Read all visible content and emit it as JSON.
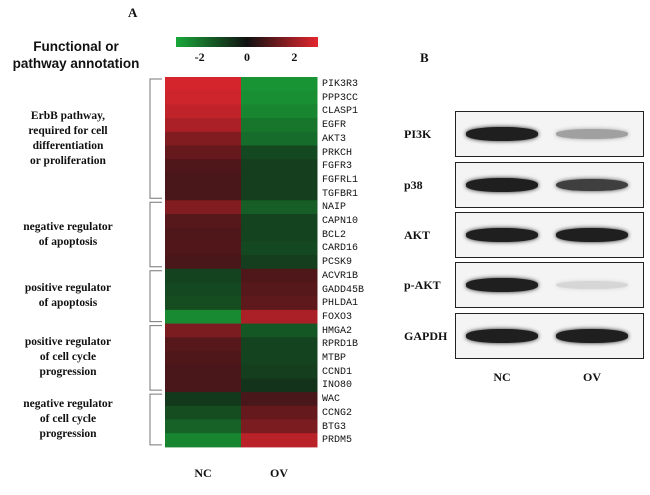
{
  "panels": {
    "a": "A",
    "b": "B"
  },
  "heading_lines": [
    "Functional or",
    "pathway annotation"
  ],
  "colors": {
    "low": "#1aa83a",
    "mid": "#111111",
    "high": "#e3262e"
  },
  "chart_data": [
    {
      "type": "heatmap",
      "columns": [
        "NC",
        "OV"
      ],
      "colorbar": {
        "min": -3,
        "max": 3,
        "ticks": [
          -2,
          0,
          2
        ]
      },
      "groups": [
        {
          "label_lines": [
            "ErbB pathway,",
            "required for cell",
            "differentiation",
            "or proliferation"
          ],
          "start": 0,
          "end": 8
        },
        {
          "label_lines": [
            "negative regulator",
            "of apoptosis"
          ],
          "start": 9,
          "end": 13
        },
        {
          "label_lines": [
            "positive regulator",
            "of apoptosis"
          ],
          "start": 14,
          "end": 17
        },
        {
          "label_lines": [
            "positive regulator",
            "of cell cycle",
            "progression"
          ],
          "start": 18,
          "end": 22
        },
        {
          "label_lines": [
            "negative regulator",
            "of cell cycle",
            "progression"
          ],
          "start": 23,
          "end": 26
        }
      ],
      "rows": [
        {
          "gene": "PIK3R3",
          "values": [
            2.8,
            -2.6
          ]
        },
        {
          "gene": "PPP3CC",
          "values": [
            2.7,
            -2.5
          ]
        },
        {
          "gene": "CLASP1",
          "values": [
            2.5,
            -2.3
          ]
        },
        {
          "gene": "EGFR",
          "values": [
            2.2,
            -2.0
          ]
        },
        {
          "gene": "AKT3",
          "values": [
            1.6,
            -1.8
          ]
        },
        {
          "gene": "PRKCH",
          "values": [
            1.2,
            -1.1
          ]
        },
        {
          "gene": "FGFR3",
          "values": [
            0.9,
            -0.9
          ]
        },
        {
          "gene": "FGFRL1",
          "values": [
            0.8,
            -0.9
          ]
        },
        {
          "gene": "TGFBR1",
          "values": [
            0.8,
            -0.9
          ]
        },
        {
          "gene": "NAIP",
          "values": [
            1.6,
            -1.5
          ]
        },
        {
          "gene": "CAPN10",
          "values": [
            1.0,
            -1.0
          ]
        },
        {
          "gene": "BCL2",
          "values": [
            0.9,
            -1.0
          ]
        },
        {
          "gene": "CARD16",
          "values": [
            0.9,
            -1.1
          ]
        },
        {
          "gene": "PCSK9",
          "values": [
            0.8,
            -0.9
          ]
        },
        {
          "gene": "ACVR1B",
          "values": [
            -1.0,
            0.9
          ]
        },
        {
          "gene": "GADD45B",
          "values": [
            -1.1,
            1.0
          ]
        },
        {
          "gene": "PHLDA1",
          "values": [
            -1.2,
            1.1
          ]
        },
        {
          "gene": "FOXO3",
          "values": [
            -2.4,
            2.2
          ]
        },
        {
          "gene": "HMGA2",
          "values": [
            1.5,
            -1.4
          ]
        },
        {
          "gene": "RPRD1B",
          "values": [
            1.0,
            -1.0
          ]
        },
        {
          "gene": "MTBP",
          "values": [
            0.9,
            -1.0
          ]
        },
        {
          "gene": "CCND1",
          "values": [
            0.8,
            -0.9
          ]
        },
        {
          "gene": "INO80",
          "values": [
            0.8,
            -0.7
          ]
        },
        {
          "gene": "WAC",
          "values": [
            -0.8,
            0.8
          ]
        },
        {
          "gene": "CCNG2",
          "values": [
            -1.2,
            1.2
          ]
        },
        {
          "gene": "BTG3",
          "values": [
            -1.6,
            1.5
          ]
        },
        {
          "gene": "PRDM5",
          "values": [
            -2.3,
            2.4
          ]
        }
      ]
    },
    {
      "type": "western_blot",
      "lanes": [
        "NC",
        "OV"
      ],
      "proteins": [
        {
          "name": "PI3K",
          "intensity": [
            0.95,
            0.35
          ]
        },
        {
          "name": "p38",
          "intensity": [
            0.95,
            0.8
          ]
        },
        {
          "name": "AKT",
          "intensity": [
            0.95,
            0.95
          ]
        },
        {
          "name": "p-AKT",
          "intensity": [
            0.95,
            0.1
          ]
        },
        {
          "name": "GAPDH",
          "intensity": [
            0.95,
            0.95
          ]
        }
      ]
    }
  ]
}
